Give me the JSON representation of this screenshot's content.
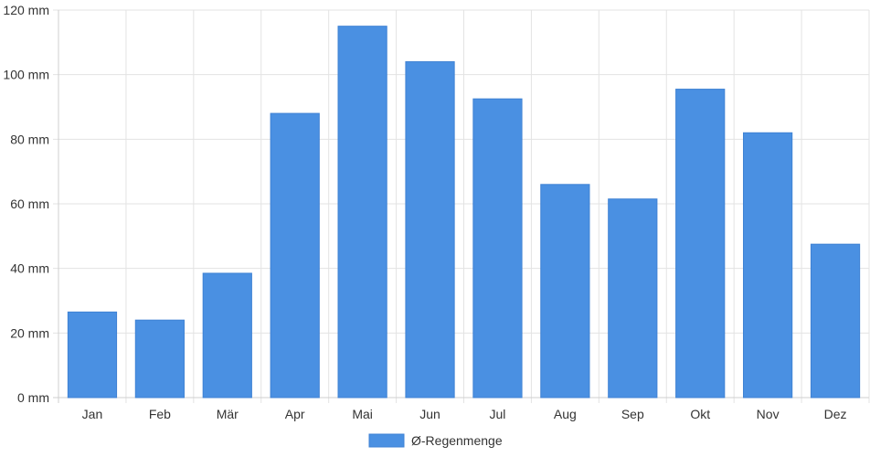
{
  "chart_data": {
    "type": "bar",
    "categories": [
      "Jan",
      "Feb",
      "Mär",
      "Apr",
      "Mai",
      "Jun",
      "Jul",
      "Aug",
      "Sep",
      "Okt",
      "Nov",
      "Dez"
    ],
    "series": [
      {
        "name": "Ø-Regenmenge",
        "values": [
          26.5,
          24,
          38.5,
          88,
          115,
          104,
          92.5,
          66,
          61.5,
          95.5,
          82,
          47.5
        ],
        "color": "#4a90e2"
      }
    ],
    "ylim": [
      0,
      120
    ],
    "yticks": [
      0,
      20,
      40,
      60,
      80,
      100,
      120
    ],
    "y_unit": "mm",
    "grid": true,
    "legend_position": "bottom-center"
  }
}
